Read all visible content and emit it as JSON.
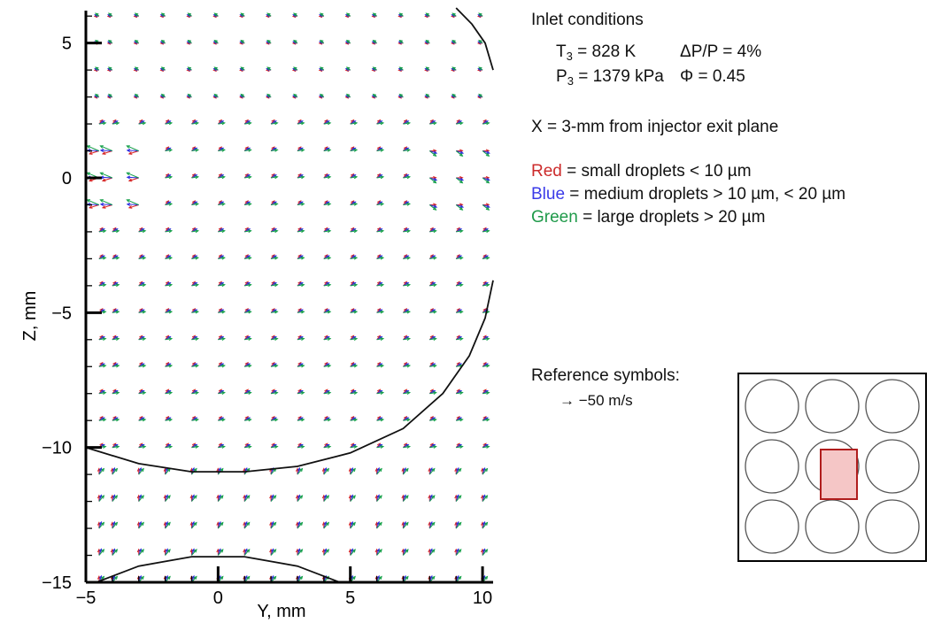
{
  "chart_data": {
    "type": "vector-field",
    "xlabel": "Y, mm",
    "ylabel": "Z, mm",
    "xlim": [
      -5,
      10.4
    ],
    "ylim": [
      -15,
      6.4
    ],
    "x_ticks": [
      -5,
      0,
      5,
      10
    ],
    "y_ticks": [
      5,
      0,
      -5,
      -10,
      -15
    ],
    "x_tick_labels": [
      "−5",
      "0",
      "5",
      "10"
    ],
    "y_tick_labels": [
      "5",
      "0",
      "−5",
      "−10",
      "−15"
    ],
    "grid_y": [
      -4.5,
      -4.0,
      -3.0,
      -2.0,
      -1.0,
      0.0,
      1.0,
      2.0,
      3.0,
      4.0,
      5.0,
      6.0,
      7.0,
      8.0,
      9.0,
      10.0
    ],
    "grid_z": [
      6.0,
      5.0,
      4.0,
      3.0,
      2.0,
      1.0,
      0.0,
      -1.0,
      -2.0,
      -3.0,
      -4.0,
      -5.0,
      -6.0,
      -7.0,
      -8.0,
      -9.0,
      -10.0,
      -11.0,
      -12.0,
      -13.0,
      -14.0,
      -15.0
    ],
    "arrow_scale": 1.0,
    "series": [
      {
        "name": "Red",
        "color": "#d62222"
      },
      {
        "name": "Blue",
        "color": "#2a2ae0"
      },
      {
        "name": "Green",
        "color": "#16a04a"
      }
    ],
    "boundary_curves": [
      {
        "points": [
          [
            9.0,
            6.3
          ],
          [
            9.6,
            5.7
          ],
          [
            10.1,
            5.0
          ],
          [
            10.4,
            4.0
          ]
        ]
      },
      {
        "points": [
          [
            -5.0,
            -10.0
          ],
          [
            -3.0,
            -10.6
          ],
          [
            -1.0,
            -10.9
          ],
          [
            1.0,
            -10.9
          ],
          [
            3.0,
            -10.7
          ],
          [
            5.0,
            -10.2
          ],
          [
            7.0,
            -9.3
          ],
          [
            8.5,
            -8.0
          ],
          [
            9.5,
            -6.6
          ],
          [
            10.1,
            -5.2
          ],
          [
            10.4,
            -3.8
          ]
        ]
      },
      {
        "points": [
          [
            -4.6,
            -15.0
          ],
          [
            -3.0,
            -14.4
          ],
          [
            -1.0,
            -14.05
          ],
          [
            1.0,
            -14.05
          ],
          [
            3.0,
            -14.4
          ],
          [
            4.6,
            -15.0
          ]
        ]
      }
    ]
  },
  "annotations": {
    "inlet_title": "Inlet conditions",
    "t3_prefix": "T",
    "t3_sub": "3",
    "t3_value": " = 828 K",
    "dp": "ΔP/P = 4%",
    "p3_prefix": "P",
    "p3_sub": "3",
    "p3_value": " = 1379 kPa",
    "phi": "Φ = 0.45",
    "x_location": "X = 3-mm from injector exit plane",
    "legend_red_word": "Red",
    "legend_red_text": " = small droplets < 10 µm",
    "legend_blue_word": "Blue",
    "legend_blue_text": " = medium droplets > 10 µm, < 20 µm",
    "legend_green_word": "Green",
    "legend_green_text": " = large droplets > 20 µm",
    "reference_title": "Reference symbols:",
    "reference_arrow": "→ −50 m/s"
  },
  "colors": {
    "red_text": "#cc2b2b",
    "blue_text": "#3a3ae8",
    "green_text": "#1f9a4a",
    "highlight_fill": "#f5c6c6",
    "highlight_stroke": "#b01d1d"
  }
}
